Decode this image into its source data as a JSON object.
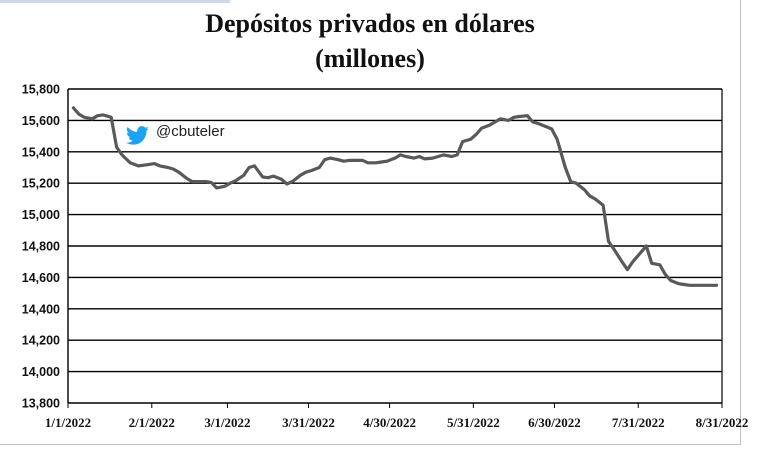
{
  "chart_data": {
    "type": "line",
    "title": "Depósitos privados en dólares",
    "subtitle": "(millones)",
    "xlabel": "",
    "ylabel": "",
    "xlim": [
      "2022-01-01",
      "2022-08-31"
    ],
    "ylim": [
      13800,
      15800
    ],
    "y_ticks": [
      "13,800",
      "14,000",
      "14,200",
      "14,400",
      "14,600",
      "14,800",
      "15,000",
      "15,200",
      "15,400",
      "15,600",
      "15,800"
    ],
    "x_ticks": [
      "1/1/2022",
      "2/1/2022",
      "3/1/2022",
      "3/31/2022",
      "4/30/2022",
      "5/31/2022",
      "6/30/2022",
      "7/31/2022",
      "8/31/2022"
    ],
    "grid": true,
    "color": "#595959",
    "series": [
      {
        "x": [
          "2022-01-03",
          "2022-01-05",
          "2022-01-07",
          "2022-01-10",
          "2022-01-12",
          "2022-01-14",
          "2022-01-17",
          "2022-01-19",
          "2022-01-21",
          "2022-01-24",
          "2022-01-27",
          "2022-01-31",
          "2022-02-02",
          "2022-02-04",
          "2022-02-07",
          "2022-02-09",
          "2022-02-11",
          "2022-02-14",
          "2022-02-16",
          "2022-02-18",
          "2022-02-21",
          "2022-02-23",
          "2022-02-25",
          "2022-02-28",
          "2022-03-02",
          "2022-03-04",
          "2022-03-07",
          "2022-03-09",
          "2022-03-11",
          "2022-03-14",
          "2022-03-16",
          "2022-03-18",
          "2022-03-21",
          "2022-03-23",
          "2022-03-25",
          "2022-03-28",
          "2022-03-30",
          "2022-04-01",
          "2022-04-04",
          "2022-04-06",
          "2022-04-08",
          "2022-04-11",
          "2022-04-13",
          "2022-04-15",
          "2022-04-18",
          "2022-04-20",
          "2022-04-22",
          "2022-04-25",
          "2022-04-27",
          "2022-04-29",
          "2022-05-02",
          "2022-05-04",
          "2022-05-06",
          "2022-05-09",
          "2022-05-11",
          "2022-05-13",
          "2022-05-16",
          "2022-05-18",
          "2022-05-20",
          "2022-05-23",
          "2022-05-25",
          "2022-05-27",
          "2022-05-30",
          "2022-06-01",
          "2022-06-03",
          "2022-06-06",
          "2022-06-08",
          "2022-06-10",
          "2022-06-13",
          "2022-06-15",
          "2022-06-17",
          "2022-06-20",
          "2022-06-22",
          "2022-06-24",
          "2022-06-27",
          "2022-06-29",
          "2022-07-01",
          "2022-07-04",
          "2022-07-06",
          "2022-07-08",
          "2022-07-11",
          "2022-07-13",
          "2022-07-15",
          "2022-07-18",
          "2022-07-20",
          "2022-07-22",
          "2022-07-25",
          "2022-07-27",
          "2022-07-29",
          "2022-08-01",
          "2022-08-03",
          "2022-08-05",
          "2022-08-08",
          "2022-08-10",
          "2022-08-12",
          "2022-08-15",
          "2022-08-17",
          "2022-08-19",
          "2022-08-22",
          "2022-08-24",
          "2022-08-26",
          "2022-08-29"
        ],
        "values": [
          15680,
          15640,
          15620,
          15610,
          15630,
          15635,
          15620,
          15430,
          15380,
          15330,
          15310,
          15320,
          15325,
          15310,
          15300,
          15290,
          15270,
          15230,
          15210,
          15210,
          15210,
          15205,
          15170,
          15180,
          15200,
          15215,
          15250,
          15300,
          15310,
          15240,
          15235,
          15245,
          15225,
          15195,
          15210,
          15250,
          15270,
          15280,
          15300,
          15350,
          15360,
          15350,
          15340,
          15345,
          15345,
          15345,
          15330,
          15330,
          15335,
          15340,
          15360,
          15380,
          15370,
          15360,
          15370,
          15355,
          15360,
          15370,
          15380,
          15370,
          15380,
          15465,
          15480,
          15510,
          15550,
          15570,
          15590,
          15610,
          15600,
          15620,
          15625,
          15630,
          15590,
          15580,
          15560,
          15545,
          15480,
          15300,
          15210,
          15200,
          15160,
          15120,
          15100,
          15060,
          14830,
          14780,
          14700,
          14650,
          14700,
          14760,
          14800,
          14690,
          14680,
          14620,
          14580,
          14560,
          14555,
          14550,
          14550,
          14550,
          14550,
          14550
        ]
      }
    ],
    "annotation": {
      "icon": "twitter-bird-icon",
      "handle": "@cbuteler",
      "icon_color": "#1da1f2"
    }
  }
}
